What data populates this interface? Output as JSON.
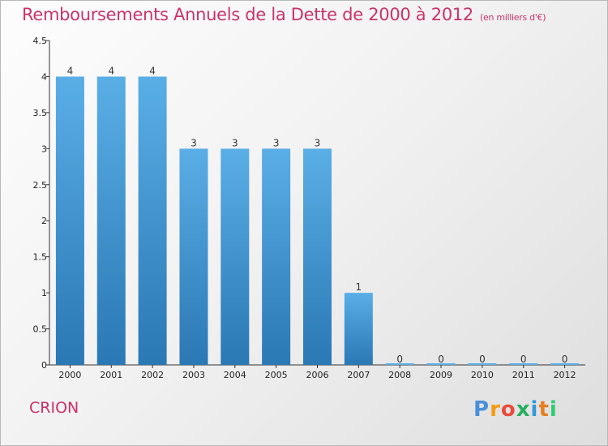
{
  "header": {
    "title": "Remboursements Annuels de la Dette de 2000 à 2012",
    "subtitle": "(en milliers d'€)"
  },
  "footer": {
    "commune": "CRION",
    "logo_text": "Proxiti"
  },
  "colors": {
    "title": "#c8336a",
    "bar_top": "#5aaee6",
    "bar_bottom": "#2a78b4",
    "logo": [
      "#4a90d9",
      "#f39c12",
      "#e74c3c",
      "#27ae60",
      "#3498db",
      "#e67e22",
      "#2ecc71"
    ]
  },
  "chart_data": {
    "type": "bar",
    "title": "Remboursements Annuels de la Dette de 2000 à 2012",
    "subtitle": "(en milliers d'€)",
    "categories": [
      "2000",
      "2001",
      "2002",
      "2003",
      "2004",
      "2005",
      "2006",
      "2007",
      "2008",
      "2009",
      "2010",
      "2011",
      "2012"
    ],
    "values": [
      4,
      4,
      4,
      3,
      3,
      3,
      3,
      1,
      0,
      0,
      0,
      0,
      0
    ],
    "value_labels": [
      "4",
      "4",
      "4",
      "3",
      "3",
      "3",
      "3",
      "1",
      "0",
      "0",
      "0",
      "0",
      "0"
    ],
    "ylim": [
      0,
      4.5
    ],
    "yticks": [
      0,
      0.5,
      1,
      1.5,
      2,
      2.5,
      3,
      3.5,
      4,
      4.5
    ],
    "ytick_labels": [
      "0",
      "0.5",
      "1",
      "1.5",
      "2",
      "2.5",
      "3",
      "3.5",
      "4",
      "4.5"
    ],
    "grid": false,
    "legend": "none"
  }
}
